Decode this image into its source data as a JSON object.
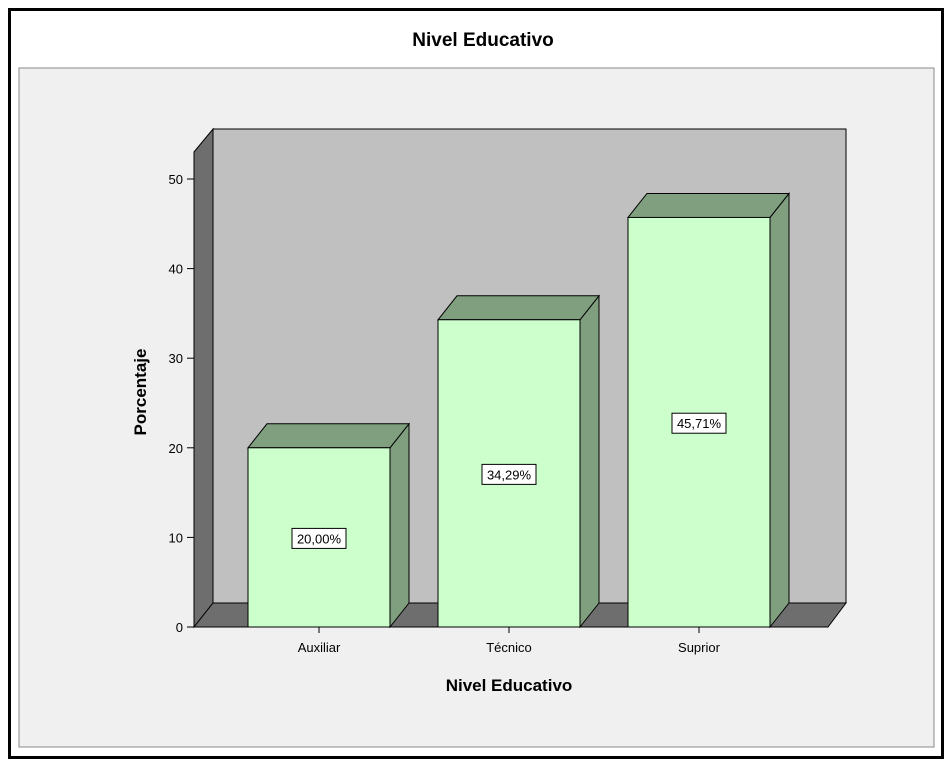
{
  "chart_data": {
    "type": "bar",
    "title": "Nivel Educativo",
    "xlabel": "Nivel Educativo",
    "ylabel": "Porcentaje",
    "categories": [
      "Auxiliar",
      "Técnico",
      "Suprior"
    ],
    "values": [
      20.0,
      34.29,
      45.71
    ],
    "data_labels": [
      "20,00%",
      "34,29%",
      "45,71%"
    ],
    "ylim": [
      0,
      50
    ],
    "yticks": [
      0,
      10,
      20,
      30,
      40,
      50
    ],
    "three_d": true,
    "colors": {
      "bar_front": "#ccffcc",
      "bar_side": "#7f9f7f",
      "wall": "#c0c0c0",
      "floor": "#6e6e6e",
      "plot_background": "#f0f0f0"
    }
  }
}
